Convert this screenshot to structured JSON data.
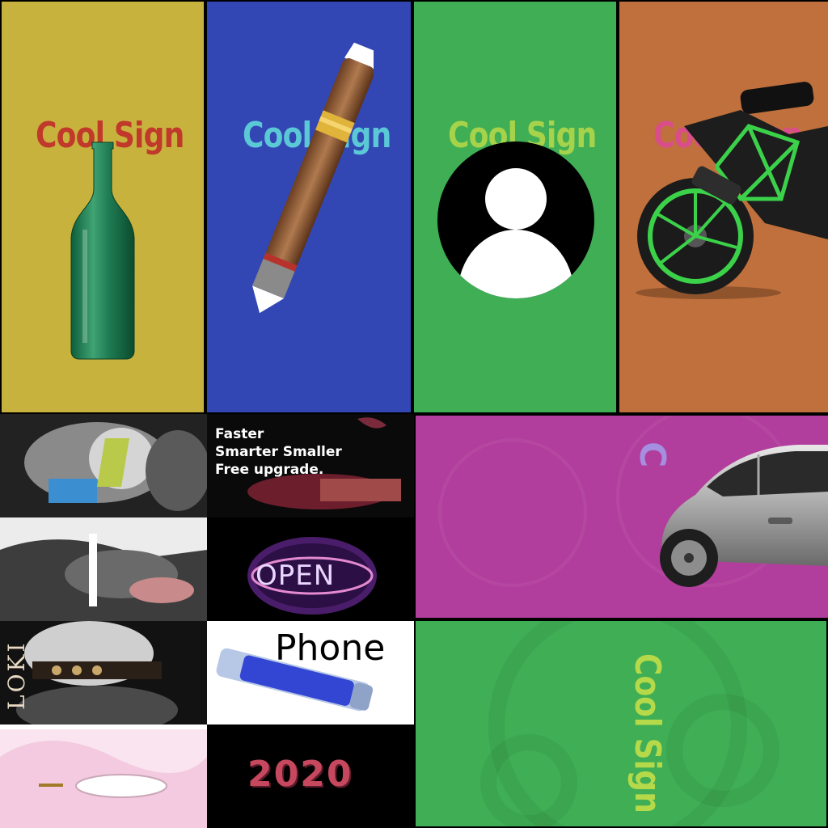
{
  "tiles": [
    {
      "id": "bottle",
      "label": "Cool Sign",
      "label_color": "#c0392b",
      "bg": "#c8b23e",
      "watermark": ""
    },
    {
      "id": "cigar",
      "label": "Cool Sign",
      "label_color": "#5bc8d6",
      "bg": "#3347b4",
      "watermark": ""
    },
    {
      "id": "avatar",
      "label": "Cool Sign",
      "label_color": "#a7d34a",
      "bg": "#3fae55",
      "watermark": ""
    },
    {
      "id": "motorbike",
      "label": "Cool Sign",
      "label_color": "#d94d8a",
      "bg": "#c0703c",
      "watermark": ""
    }
  ],
  "collage": {
    "loki_text": "LOKI",
    "promo_lines": [
      "Faster",
      "Smarter Smaller",
      "Free upgrade."
    ],
    "open_sign": "OPEN",
    "phone_label": "Phone",
    "year_text": "2020"
  },
  "car_tile": {
    "label": "C",
    "bg": "#b13e9c",
    "label_color": "#a58fe0"
  },
  "bottom_tile": {
    "label": "Cool Sign",
    "bg": "#3fae55",
    "label_color": "#b6d94a"
  },
  "icons": [
    "bottle-icon",
    "cigar-icon",
    "user-avatar-icon",
    "motorbike-icon",
    "car-icon",
    "marker-icon"
  ]
}
